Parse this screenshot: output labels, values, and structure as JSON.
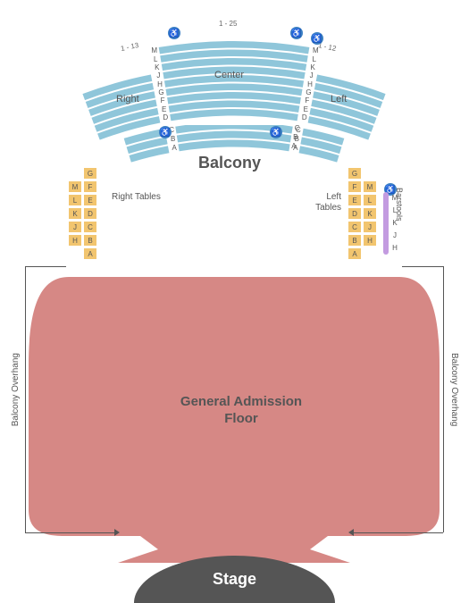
{
  "colors": {
    "balcony_fill": "#8fc6da",
    "balcony_lower_fill": "#8fc6da",
    "tables_fill": "#f2c56f",
    "barstool_fill": "#c39be0",
    "ga_fill": "#d68885",
    "stage_fill": "#555555",
    "accessible_bg": "#3b7fc4",
    "outline": "#555555"
  },
  "labels": {
    "balcony": "Balcony",
    "center": "Center",
    "right": "Right",
    "left": "Left",
    "right_tables": "Right Tables",
    "left_tables": "Left Tables",
    "barstools": "Barstools",
    "ga": "General Admission Floor",
    "stage": "Stage",
    "overhang_left": "Balcony Overhang",
    "overhang_right": "Balcony Overhang",
    "range_right": "1 - 13",
    "range_center": "1 - 25",
    "range_left": "1 - 12"
  },
  "balcony": {
    "center_rows": [
      "M",
      "L",
      "K",
      "J",
      "H",
      "G",
      "F",
      "E",
      "D"
    ],
    "lower_rows": [
      "C",
      "B",
      "A"
    ],
    "side_rows": [
      "J",
      "H",
      "G",
      "F",
      "E",
      "D"
    ]
  },
  "tables": {
    "right_col1": [
      "M",
      "L",
      "K",
      "J",
      "H"
    ],
    "right_col2": [
      "G",
      "F",
      "E",
      "D",
      "C",
      "B",
      "A"
    ],
    "left_col1": [
      "G",
      "F",
      "E",
      "D",
      "C",
      "B",
      "A"
    ],
    "left_col2": [
      "M",
      "L",
      "K",
      "J",
      "H"
    ]
  },
  "barstool_rows": [
    "M",
    "L",
    "K",
    "J",
    "H"
  ],
  "accessible_count": 6
}
